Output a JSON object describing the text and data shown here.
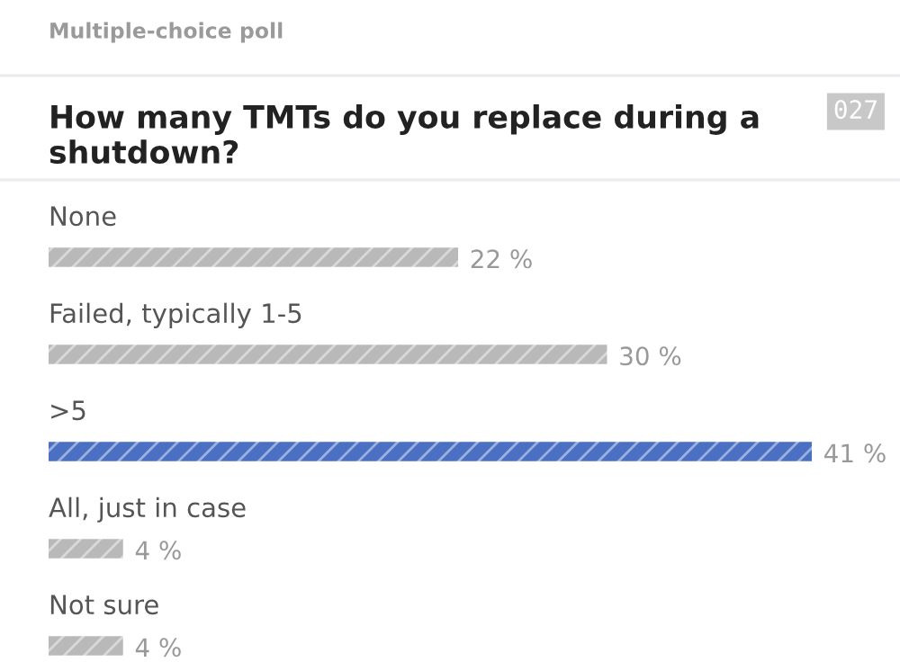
{
  "chart_data": {
    "type": "bar",
    "orientation": "horizontal",
    "title": "How many TMTs do you replace during a shutdown?",
    "annotations": [
      "Multiple-choice poll",
      "027"
    ],
    "categories": [
      "None",
      "Failed, typically 1-5",
      ">5",
      "All, just in case",
      "Not sure"
    ],
    "values": [
      22,
      30,
      41,
      4,
      4
    ],
    "colors": [
      "#b9b9b9",
      "#b9b9b9",
      "#4a6fc3",
      "#b9b9b9",
      "#b9b9b9"
    ],
    "value_labels": [
      "22 %",
      "30 %",
      "41 %",
      "4 %",
      "4 %"
    ]
  }
}
